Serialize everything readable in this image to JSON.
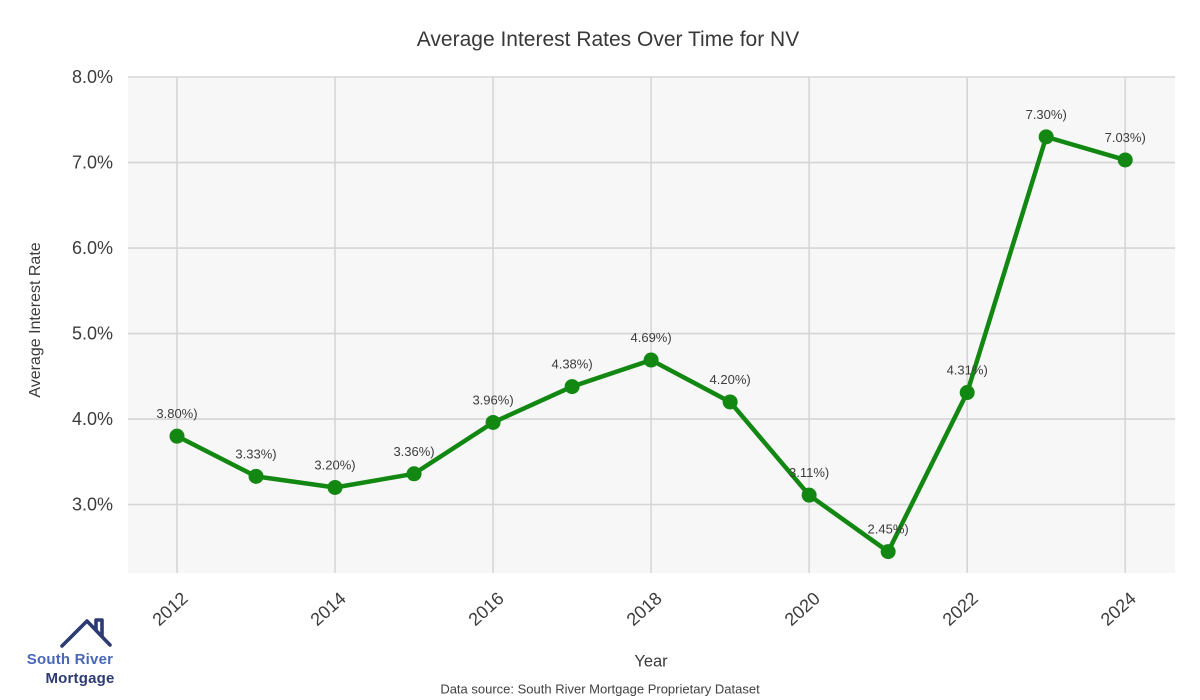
{
  "page": {
    "footer_source": "Data source: South River Mortgage Proprietary Dataset"
  },
  "logo": {
    "line1": "South River",
    "line2": "Mortgage",
    "colors": {
      "line1": "#4a68b6",
      "line2": "#2e3b72",
      "roof": "#2e3b72"
    }
  },
  "chart_data": {
    "type": "line",
    "title": "Average Interest Rates Over Time for NV",
    "xlabel": "Year",
    "ylabel": "Average Interest Rate",
    "x": [
      2012,
      2013,
      2014,
      2015,
      2016,
      2017,
      2018,
      2019,
      2020,
      2021,
      2022,
      2023,
      2024
    ],
    "values": [
      3.8,
      3.33,
      3.2,
      3.36,
      3.96,
      4.38,
      4.69,
      4.2,
      3.11,
      2.45,
      4.31,
      7.3,
      7.03
    ],
    "point_labels": [
      "3.80%)",
      "3.33%)",
      "3.20%)",
      "3.36%)",
      "3.96%)",
      "4.38%)",
      "4.69%)",
      "4.20%)",
      "3.11%)",
      "2.45%)",
      "4.31%)",
      "7.30%)",
      "7.03%)"
    ],
    "xticks": {
      "values": [
        2012,
        2014,
        2016,
        2018,
        2020,
        2022,
        2024
      ],
      "labels": [
        "2012",
        "2014",
        "2016",
        "2018",
        "2020",
        "2022",
        "2024"
      ]
    },
    "yticks": {
      "values": [
        8.0,
        7.0,
        6.0,
        5.0,
        4.0,
        3.0
      ],
      "labels": [
        "8.0%",
        "7.0%",
        "6.0%",
        "5.0%",
        "4.0%",
        "3.0%"
      ]
    },
    "xlim": [
      2011.38,
      2024.63
    ],
    "ylim": [
      2.2,
      8.0
    ],
    "grid": true,
    "legend": false,
    "colors": {
      "line": "#128712",
      "plot_bg": "#f7f7f7",
      "grid": "#d6d6d6",
      "text": "#3c3c3c"
    }
  }
}
